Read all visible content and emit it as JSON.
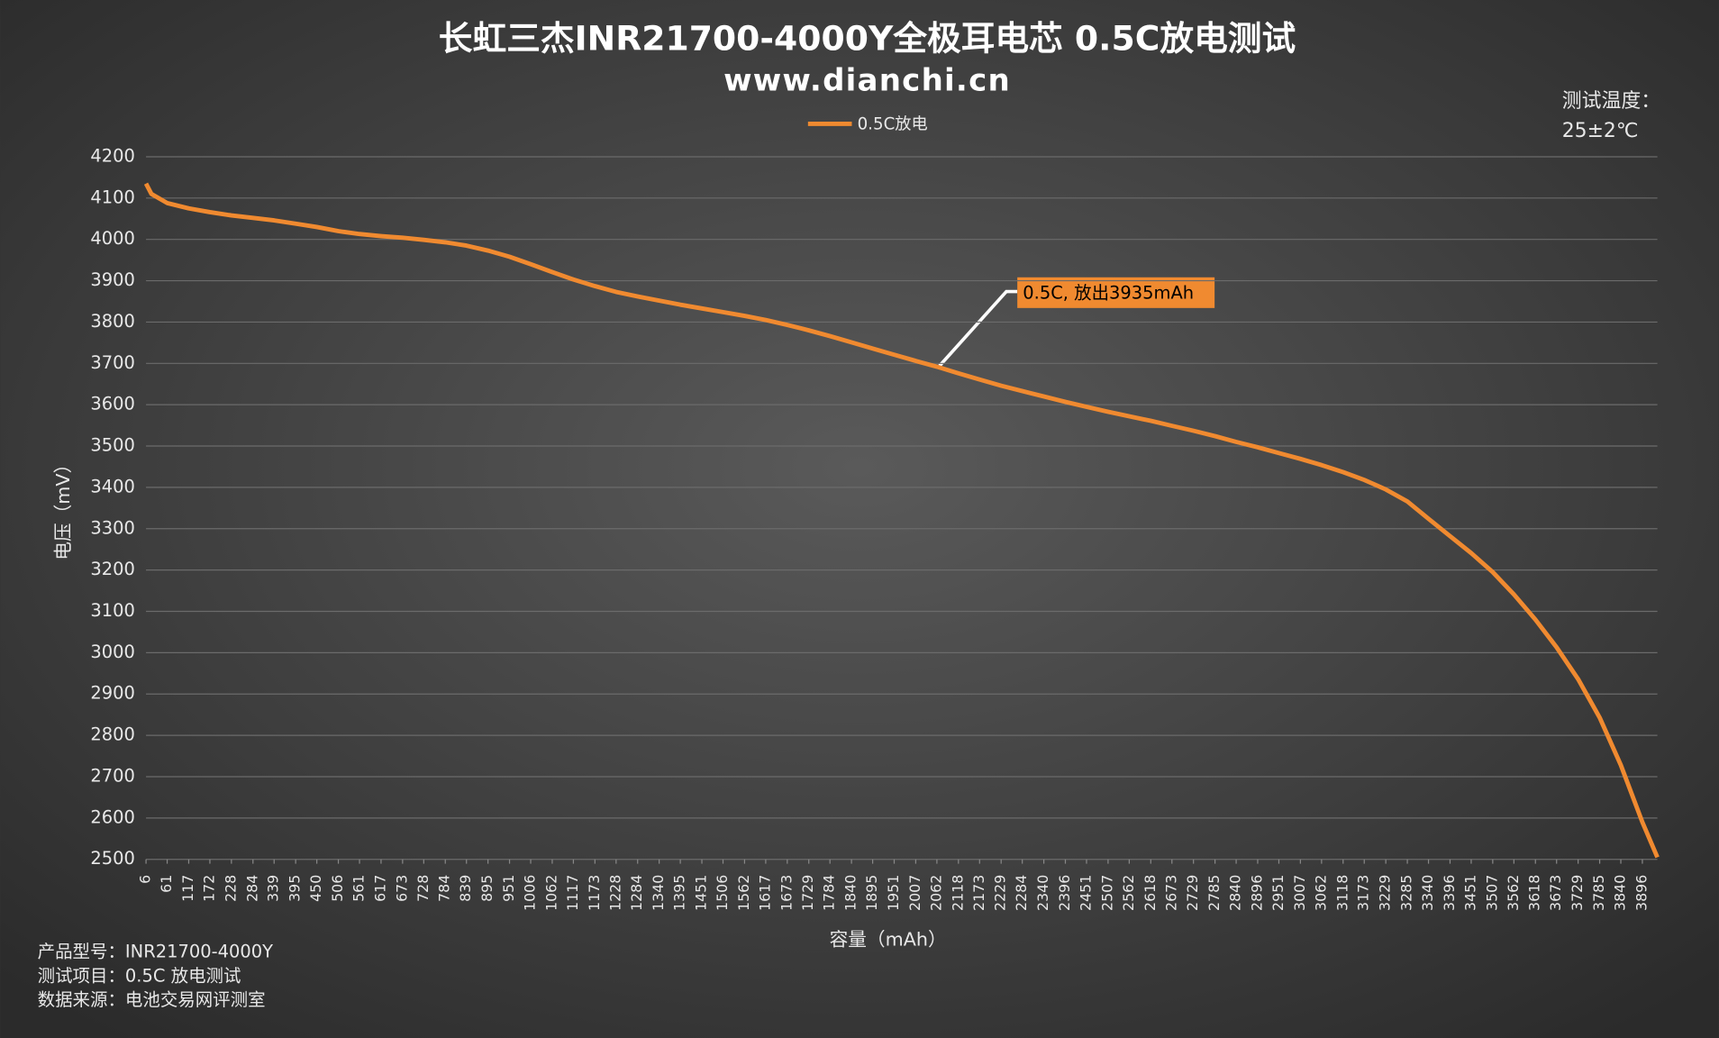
{
  "chart_data": {
    "type": "line",
    "title": "长虹三杰INR21700-4000Y全极耳电芯 0.5C放电测试",
    "subtitle": "www.dianchi.cn",
    "xlabel": "容量（mAh）",
    "ylabel": "电压（mV）",
    "x": [
      6,
      20,
      61,
      117,
      172,
      228,
      284,
      339,
      395,
      450,
      506,
      561,
      617,
      673,
      728,
      784,
      839,
      895,
      951,
      1006,
      1062,
      1117,
      1173,
      1228,
      1284,
      1340,
      1395,
      1451,
      1506,
      1562,
      1617,
      1673,
      1729,
      1784,
      1840,
      1895,
      1951,
      2007,
      2062,
      2118,
      2173,
      2229,
      2284,
      2340,
      2396,
      2451,
      2507,
      2562,
      2618,
      2673,
      2729,
      2785,
      2840,
      2896,
      2951,
      3007,
      3062,
      3118,
      3173,
      3229,
      3285,
      3340,
      3396,
      3451,
      3507,
      3562,
      3618,
      3673,
      3729,
      3785,
      3840,
      3896,
      3935
    ],
    "series": [
      {
        "name": "0.5C放电",
        "color": "#f08a30",
        "values": [
          4135,
          4110,
          4088,
          4075,
          4066,
          4058,
          4052,
          4046,
          4038,
          4030,
          4020,
          4013,
          4008,
          4004,
          3999,
          3993,
          3985,
          3973,
          3958,
          3940,
          3921,
          3903,
          3887,
          3873,
          3862,
          3852,
          3842,
          3833,
          3824,
          3815,
          3805,
          3793,
          3780,
          3766,
          3751,
          3736,
          3721,
          3706,
          3692,
          3676,
          3661,
          3646,
          3633,
          3620,
          3607,
          3595,
          3583,
          3572,
          3561,
          3549,
          3537,
          3524,
          3510,
          3497,
          3483,
          3469,
          3454,
          3437,
          3418,
          3395,
          3366,
          3324,
          3282,
          3241,
          3195,
          3141,
          3080,
          3013,
          2936,
          2843,
          2728,
          2590,
          2505
        ]
      }
    ],
    "xlim": [
      6,
      3935
    ],
    "xticks": [
      6,
      61,
      117,
      172,
      228,
      284,
      339,
      395,
      450,
      506,
      561,
      617,
      673,
      728,
      784,
      839,
      895,
      951,
      1006,
      1062,
      1117,
      1173,
      1228,
      1284,
      1340,
      1395,
      1451,
      1506,
      1562,
      1617,
      1673,
      1729,
      1784,
      1840,
      1895,
      1951,
      2007,
      2062,
      2118,
      2173,
      2229,
      2284,
      2340,
      2396,
      2451,
      2507,
      2562,
      2618,
      2673,
      2729,
      2785,
      2840,
      2896,
      2951,
      3007,
      3062,
      3118,
      3173,
      3229,
      3285,
      3340,
      3396,
      3451,
      3507,
      3562,
      3618,
      3673,
      3729,
      3785,
      3840,
      3896
    ],
    "ylim": [
      2500,
      4200
    ],
    "yticks": [
      2500,
      2600,
      2700,
      2800,
      2900,
      3000,
      3100,
      3200,
      3300,
      3400,
      3500,
      3600,
      3700,
      3800,
      3900,
      4000,
      4100,
      4200
    ],
    "grid": true,
    "legend": "top",
    "annotations": [
      "0.5C, 放出3935mAh"
    ],
    "temperature_note": [
      "测试温度：",
      "25±2℃"
    ],
    "notes": [
      "产品型号：INR21700-4000Y",
      "测试项目：0.5C 放电测试",
      "数据来源：电池交易网评测室"
    ]
  }
}
